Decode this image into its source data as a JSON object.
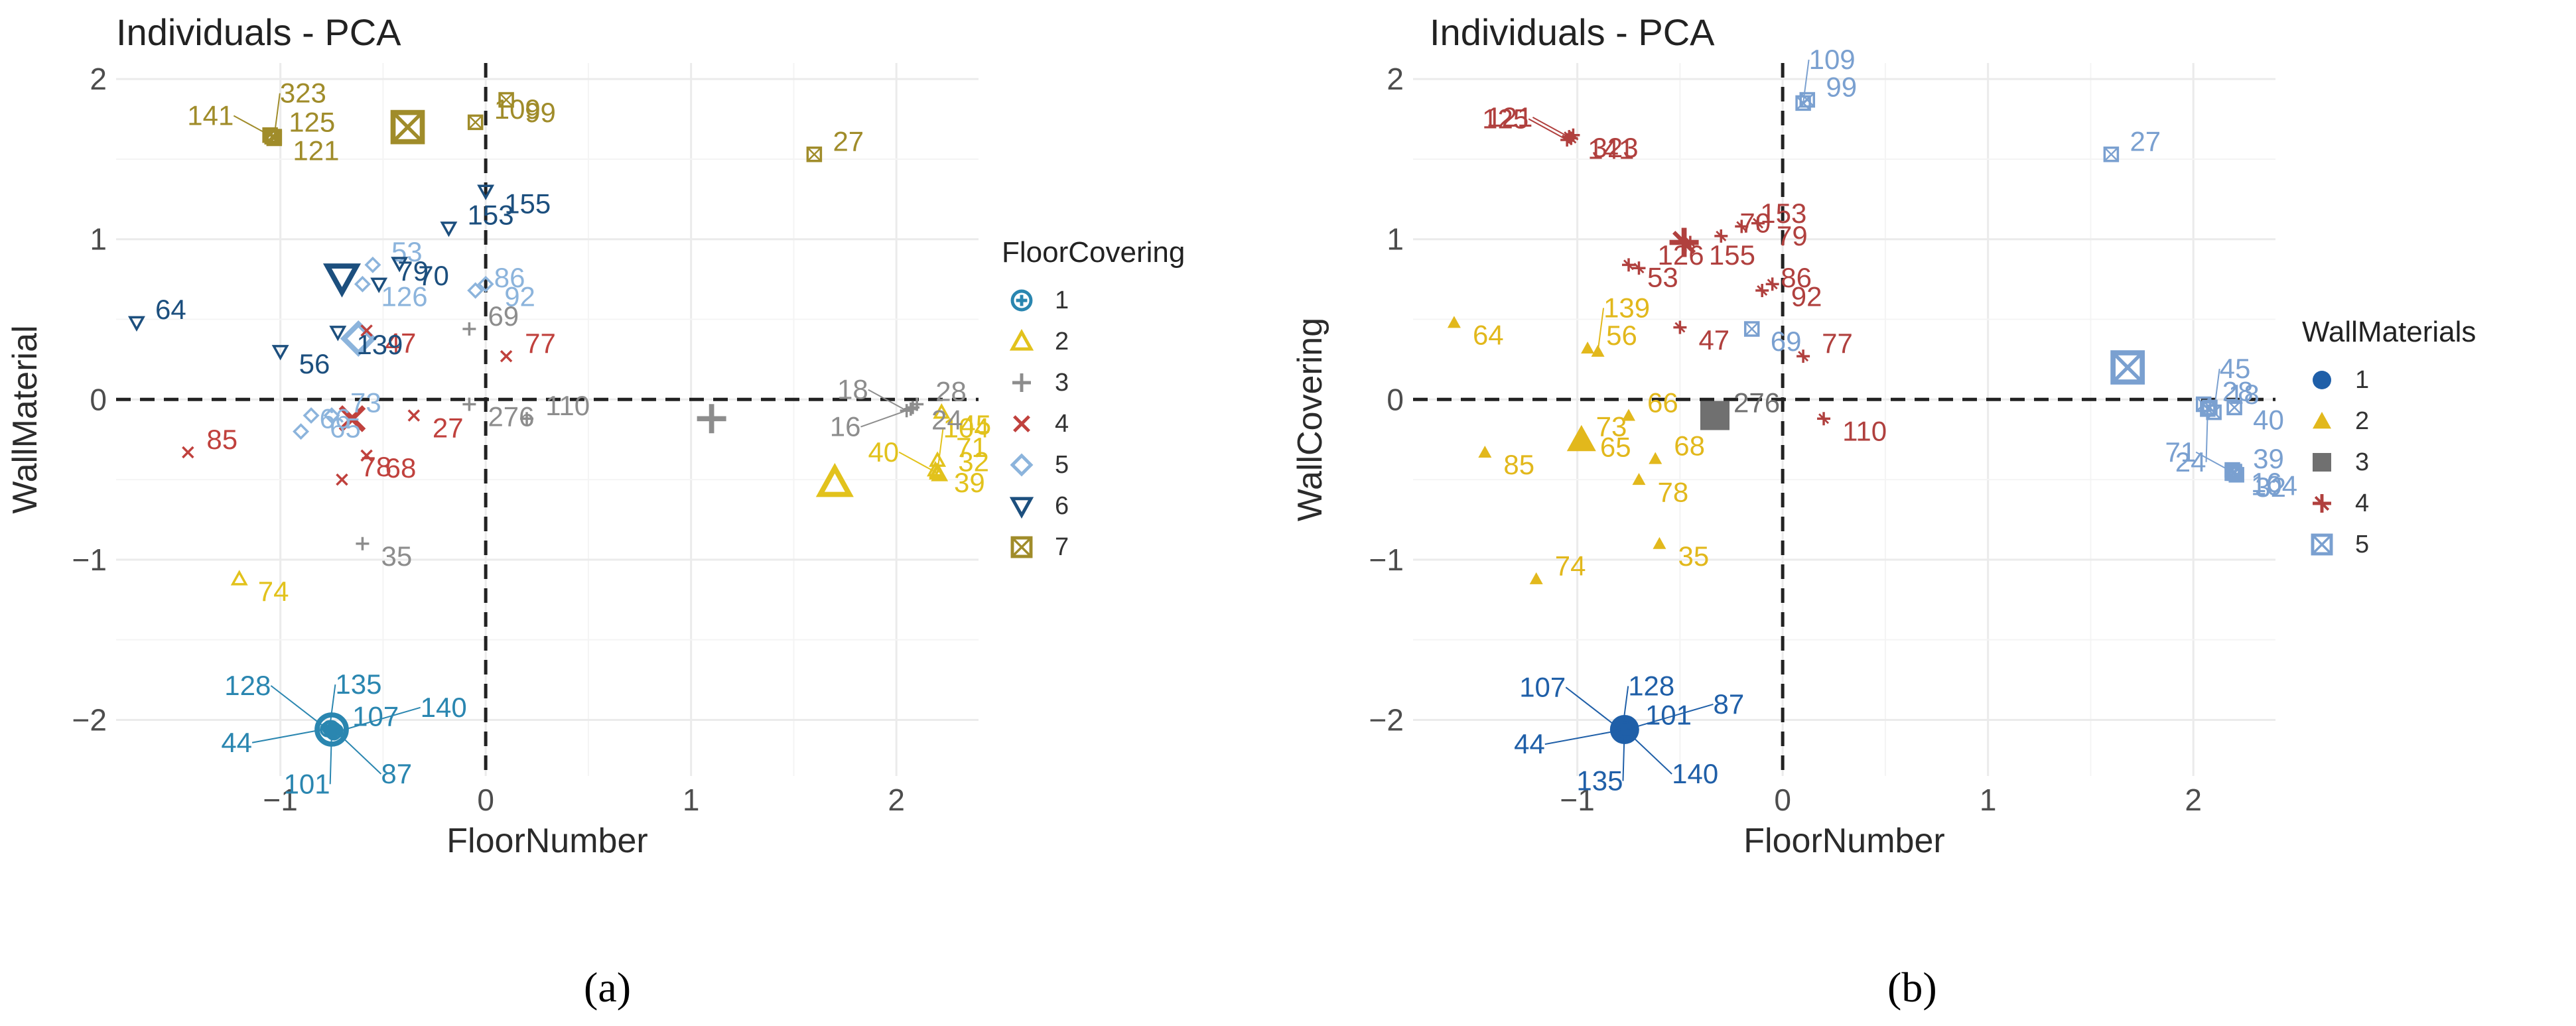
{
  "captions": [
    "(a)",
    "(b)"
  ],
  "chart_data": [
    {
      "type": "scatter",
      "title": "Individuals - PCA",
      "xlabel": "FloorNumber",
      "ylabel": "WallMaterial",
      "xlim": [
        -1.8,
        2.4
      ],
      "ylim": [
        -2.35,
        2.1
      ],
      "xticks": [
        -1,
        0,
        1,
        2
      ],
      "yticks": [
        -2,
        -1,
        0,
        1,
        2
      ],
      "legend": {
        "title": "FloorCovering",
        "position": "right",
        "entries": [
          {
            "label": "1",
            "color": "#2a86b0",
            "shape": "circle-plus"
          },
          {
            "label": "2",
            "color": "#e2c21c",
            "shape": "triangle-open"
          },
          {
            "label": "3",
            "color": "#8d8d8d",
            "shape": "plus"
          },
          {
            "label": "4",
            "color": "#c0413d",
            "shape": "cross"
          },
          {
            "label": "5",
            "color": "#8cb4dc",
            "shape": "diamond-open"
          },
          {
            "label": "6",
            "color": "#1c4f7e",
            "shape": "triangle-down-open"
          },
          {
            "label": "7",
            "color": "#a08c2a",
            "shape": "square-cross"
          }
        ]
      },
      "centroids": [
        {
          "group": "1",
          "x": -0.75,
          "y": -2.06
        },
        {
          "group": "2",
          "x": 1.7,
          "y": -0.52
        },
        {
          "group": "3",
          "x": 1.1,
          "y": -0.12
        },
        {
          "group": "4",
          "x": -0.65,
          "y": -0.12
        },
        {
          "group": "5",
          "x": -0.62,
          "y": 0.38
        },
        {
          "group": "6",
          "x": -0.7,
          "y": 0.76
        },
        {
          "group": "7",
          "x": -0.38,
          "y": 1.7
        }
      ],
      "points": [
        {
          "label": "107",
          "group": "1",
          "x": -0.74,
          "y": -2.06
        },
        {
          "label": "135",
          "group": "1",
          "x": -0.76,
          "y": -2.05
        },
        {
          "label": "101",
          "group": "1",
          "x": -0.75,
          "y": -2.07
        },
        {
          "label": "87",
          "group": "1",
          "x": -0.73,
          "y": -2.07
        },
        {
          "label": "128",
          "group": "1",
          "x": -0.77,
          "y": -2.06
        },
        {
          "label": "44",
          "group": "1",
          "x": -0.75,
          "y": -2.05
        },
        {
          "label": "140",
          "group": "1",
          "x": -0.74,
          "y": -2.08
        },
        {
          "label": "45",
          "group": "2",
          "x": 2.22,
          "y": -0.08
        },
        {
          "label": "71",
          "group": "2",
          "x": 2.2,
          "y": -0.38
        },
        {
          "label": "104",
          "group": "2",
          "x": 2.2,
          "y": -0.45
        },
        {
          "label": "32",
          "group": "2",
          "x": 2.21,
          "y": -0.47
        },
        {
          "label": "39",
          "group": "2",
          "x": 2.19,
          "y": -0.44
        },
        {
          "label": "40",
          "group": "2",
          "x": 2.2,
          "y": -0.46
        },
        {
          "label": "74",
          "group": "2",
          "x": -1.2,
          "y": -1.12
        },
        {
          "label": "28",
          "group": "3",
          "x": 2.1,
          "y": -0.03
        },
        {
          "label": "24",
          "group": "3",
          "x": 2.08,
          "y": -0.05
        },
        {
          "label": "18",
          "group": "3",
          "x": 2.05,
          "y": -0.07
        },
        {
          "label": "16",
          "group": "3",
          "x": 2.07,
          "y": -0.06
        },
        {
          "label": "69",
          "group": "3",
          "x": -0.08,
          "y": 0.44
        },
        {
          "label": "35",
          "group": "3",
          "x": -0.6,
          "y": -0.9
        },
        {
          "label": "110",
          "group": "3",
          "x": 0.2,
          "y": -0.12
        },
        {
          "label": "276",
          "group": "3",
          "x": -0.08,
          "y": -0.03
        },
        {
          "label": "85",
          "group": "4",
          "x": -1.45,
          "y": -0.33
        },
        {
          "label": "68",
          "group": "4",
          "x": -0.58,
          "y": -0.35
        },
        {
          "label": "78",
          "group": "4",
          "x": -0.7,
          "y": -0.5
        },
        {
          "label": "47",
          "group": "4",
          "x": -0.58,
          "y": 0.43
        },
        {
          "label": "77",
          "group": "4",
          "x": 0.1,
          "y": 0.27
        },
        {
          "label": "27",
          "group": "4",
          "x": -0.35,
          "y": -0.1
        },
        {
          "label": "53",
          "group": "5",
          "x": -0.55,
          "y": 0.84
        },
        {
          "label": "126",
          "group": "5",
          "x": -0.6,
          "y": 0.72
        },
        {
          "label": "86",
          "group": "5",
          "x": -0.05,
          "y": 0.68
        },
        {
          "label": "92",
          "group": "5",
          "x": 0.0,
          "y": 0.72
        },
        {
          "label": "73",
          "group": "5",
          "x": -0.75,
          "y": -0.1
        },
        {
          "label": "65",
          "group": "5",
          "x": -0.85,
          "y": -0.1
        },
        {
          "label": "66",
          "group": "5",
          "x": -0.9,
          "y": -0.2
        },
        {
          "label": "155",
          "group": "6",
          "x": 0.0,
          "y": 1.3
        },
        {
          "label": "153",
          "group": "6",
          "x": -0.18,
          "y": 1.07
        },
        {
          "label": "70",
          "group": "6",
          "x": -0.42,
          "y": 0.85
        },
        {
          "label": "79",
          "group": "6",
          "x": -0.52,
          "y": 0.72
        },
        {
          "label": "139",
          "group": "6",
          "x": -0.72,
          "y": 0.42
        },
        {
          "label": "64",
          "group": "6",
          "x": -1.7,
          "y": 0.48
        },
        {
          "label": "56",
          "group": "6",
          "x": -1.0,
          "y": 0.3
        },
        {
          "label": "125",
          "group": "7",
          "x": -1.05,
          "y": 1.65
        },
        {
          "label": "121",
          "group": "7",
          "x": -1.03,
          "y": 1.63
        },
        {
          "label": "141",
          "group": "7",
          "x": -1.04,
          "y": 1.64
        },
        {
          "label": "323",
          "group": "7",
          "x": -1.03,
          "y": 1.64
        },
        {
          "label": "109",
          "group": "7",
          "x": -0.05,
          "y": 1.73
        },
        {
          "label": "99",
          "group": "7",
          "x": 0.1,
          "y": 1.87
        },
        {
          "label": "27",
          "group": "7",
          "x": 1.6,
          "y": 1.53
        }
      ]
    },
    {
      "type": "scatter",
      "title": "Individuals - PCA",
      "xlabel": "FloorNumber",
      "ylabel": "WallCovering",
      "xlim": [
        -1.8,
        2.4
      ],
      "ylim": [
        -2.35,
        2.1
      ],
      "xticks": [
        -1,
        0,
        1,
        2
      ],
      "yticks": [
        -2,
        -1,
        0,
        1,
        2
      ],
      "legend": {
        "title": "WallMaterials",
        "position": "right",
        "entries": [
          {
            "label": "1",
            "color": "#1f5fa8",
            "shape": "circle"
          },
          {
            "label": "2",
            "color": "#e2b81c",
            "shape": "triangle"
          },
          {
            "label": "3",
            "color": "#707070",
            "shape": "square"
          },
          {
            "label": "4",
            "color": "#b0403e",
            "shape": "asterisk"
          },
          {
            "label": "5",
            "color": "#7aa0d0",
            "shape": "square-cross"
          }
        ]
      },
      "centroids": [
        {
          "group": "1",
          "x": -0.77,
          "y": -2.06
        },
        {
          "group": "2",
          "x": -0.98,
          "y": -0.25
        },
        {
          "group": "3",
          "x": -0.33,
          "y": -0.1
        },
        {
          "group": "4",
          "x": -0.48,
          "y": 0.98
        },
        {
          "group": "5",
          "x": 1.68,
          "y": 0.2
        }
      ],
      "points": [
        {
          "label": "101",
          "group": "1",
          "x": -0.76,
          "y": -2.05
        },
        {
          "label": "128",
          "group": "1",
          "x": -0.78,
          "y": -2.06
        },
        {
          "label": "135",
          "group": "1",
          "x": -0.77,
          "y": -2.05
        },
        {
          "label": "140",
          "group": "1",
          "x": -0.76,
          "y": -2.07
        },
        {
          "label": "107",
          "group": "1",
          "x": -0.78,
          "y": -2.07
        },
        {
          "label": "44",
          "group": "1",
          "x": -0.77,
          "y": -2.06
        },
        {
          "label": "87",
          "group": "1",
          "x": -0.76,
          "y": -2.06
        },
        {
          "label": "64",
          "group": "2",
          "x": -1.6,
          "y": 0.48
        },
        {
          "label": "56",
          "group": "2",
          "x": -0.95,
          "y": 0.32
        },
        {
          "label": "139",
          "group": "2",
          "x": -0.9,
          "y": 0.3
        },
        {
          "label": "66",
          "group": "2",
          "x": -0.75,
          "y": -0.1
        },
        {
          "label": "85",
          "group": "2",
          "x": -1.45,
          "y": -0.33
        },
        {
          "label": "73",
          "group": "2",
          "x": -1.0,
          "y": -0.25
        },
        {
          "label": "65",
          "group": "2",
          "x": -0.98,
          "y": -0.22
        },
        {
          "label": "68",
          "group": "2",
          "x": -0.62,
          "y": -0.37
        },
        {
          "label": "78",
          "group": "2",
          "x": -0.7,
          "y": -0.5
        },
        {
          "label": "74",
          "group": "2",
          "x": -1.2,
          "y": -1.12
        },
        {
          "label": "35",
          "group": "2",
          "x": -0.6,
          "y": -0.9
        },
        {
          "label": "276",
          "group": "3",
          "x": -0.33,
          "y": -0.1
        },
        {
          "label": "323",
          "group": "4",
          "x": -1.02,
          "y": 1.65
        },
        {
          "label": "121",
          "group": "4",
          "x": -1.03,
          "y": 1.63
        },
        {
          "label": "141",
          "group": "4",
          "x": -1.04,
          "y": 1.64
        },
        {
          "label": "125",
          "group": "4",
          "x": -1.05,
          "y": 1.62
        },
        {
          "label": "79",
          "group": "4",
          "x": -0.12,
          "y": 1.1
        },
        {
          "label": "153",
          "group": "4",
          "x": -0.2,
          "y": 1.08
        },
        {
          "label": "53",
          "group": "4",
          "x": -0.75,
          "y": 0.84
        },
        {
          "label": "126",
          "group": "4",
          "x": -0.7,
          "y": 0.82
        },
        {
          "label": "155",
          "group": "4",
          "x": -0.45,
          "y": 0.98
        },
        {
          "label": "70",
          "group": "4",
          "x": -0.3,
          "y": 1.02
        },
        {
          "label": "92",
          "group": "4",
          "x": -0.05,
          "y": 0.72
        },
        {
          "label": "86",
          "group": "4",
          "x": -0.1,
          "y": 0.68
        },
        {
          "label": "47",
          "group": "4",
          "x": -0.5,
          "y": 0.45
        },
        {
          "label": "77",
          "group": "4",
          "x": 0.1,
          "y": 0.27
        },
        {
          "label": "110",
          "group": "4",
          "x": 0.2,
          "y": -0.12
        },
        {
          "label": "99",
          "group": "5",
          "x": 0.12,
          "y": 1.87
        },
        {
          "label": "109",
          "group": "5",
          "x": 0.1,
          "y": 1.85
        },
        {
          "label": "27",
          "group": "5",
          "x": 1.6,
          "y": 1.53
        },
        {
          "label": "69",
          "group": "5",
          "x": -0.15,
          "y": 0.44
        },
        {
          "label": "28",
          "group": "5",
          "x": 2.05,
          "y": -0.03
        },
        {
          "label": "40",
          "group": "5",
          "x": 2.2,
          "y": -0.05
        },
        {
          "label": "18",
          "group": "5",
          "x": 2.08,
          "y": -0.05
        },
        {
          "label": "45",
          "group": "5",
          "x": 2.1,
          "y": -0.08
        },
        {
          "label": "24",
          "group": "5",
          "x": 2.07,
          "y": -0.06
        },
        {
          "label": "16",
          "group": "5",
          "x": 2.19,
          "y": -0.44
        },
        {
          "label": "39",
          "group": "5",
          "x": 2.2,
          "y": -0.45
        },
        {
          "label": "32",
          "group": "5",
          "x": 2.21,
          "y": -0.47
        },
        {
          "label": "71",
          "group": "5",
          "x": 2.2,
          "y": -0.46
        },
        {
          "label": "104",
          "group": "5",
          "x": 2.19,
          "y": -0.46
        }
      ]
    }
  ]
}
